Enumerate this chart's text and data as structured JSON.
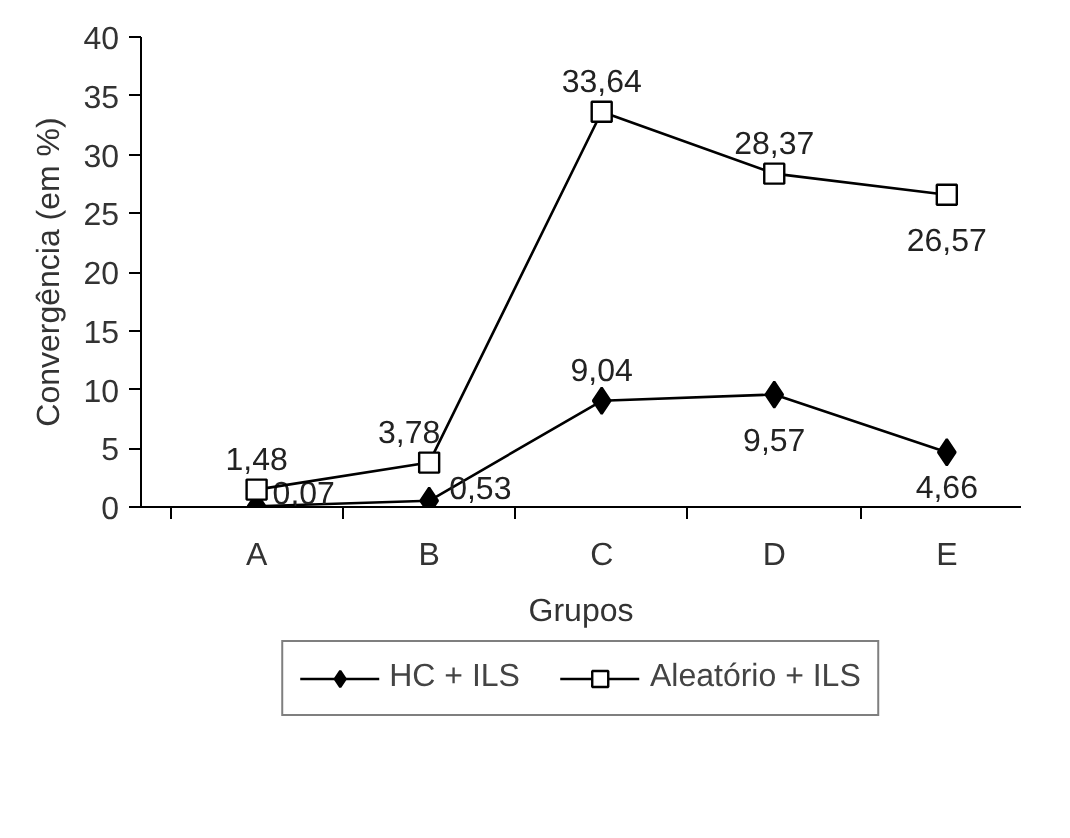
{
  "chart_data": {
    "type": "line",
    "xlabel": "Grupos",
    "ylabel": "Convergência (em %)",
    "categories": [
      "A",
      "B",
      "C",
      "D",
      "E"
    ],
    "ylim": [
      0,
      40
    ],
    "yticks": [
      0,
      5,
      10,
      15,
      20,
      25,
      30,
      35,
      40
    ],
    "grid": false,
    "legend": "bottom",
    "line_style": "solid",
    "series": [
      {
        "name": "HC + ILS",
        "color": "#000000",
        "marker": "diamond",
        "values": [
          0.07,
          0.53,
          9.04,
          9.57,
          4.66
        ],
        "value_labels": [
          "0,07",
          "0,53",
          "9,04",
          "9,57",
          "4,66"
        ]
      },
      {
        "name": "Aleatório + ILS",
        "color": "#000000",
        "marker": "square",
        "values": [
          1.48,
          3.78,
          33.64,
          28.37,
          26.57
        ],
        "value_labels": [
          "1,48",
          "3,78",
          "33,64",
          "28,37",
          "26,57"
        ]
      }
    ]
  }
}
